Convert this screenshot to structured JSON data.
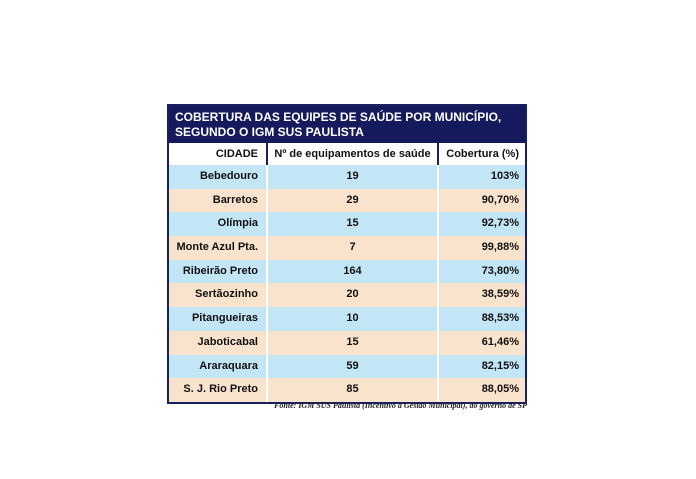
{
  "title_line1": "COBERTURA DAS EQUIPES DE SAÚDE POR MUNICÍPIO,",
  "title_line2": "SEGUNDO O IGM SUS PAULISTA",
  "headers": [
    "CIDADE",
    "Nº de equipamentos de saúde",
    "Cobertura (%)"
  ],
  "rows": [
    [
      "Bebedouro",
      "19",
      "103%"
    ],
    [
      "Barretos",
      "29",
      "90,70%"
    ],
    [
      "Olímpia",
      "15",
      "92,73%"
    ],
    [
      "Monte Azul Pta.",
      "7",
      "99,88%"
    ],
    [
      "Ribeirão Preto",
      "164",
      "73,80%"
    ],
    [
      "Sertãozinho",
      "20",
      "38,59%"
    ],
    [
      "Pitangueiras",
      "10",
      "88,53%"
    ],
    [
      "Jaboticabal",
      "15",
      "61,46%"
    ],
    [
      "Araraquara",
      "59",
      "82,15%"
    ],
    [
      "S. J. Rio Preto",
      "85",
      "88,05%"
    ]
  ],
  "source": "Fonte: IGM SUS Paulista (Incentivo à Gestão Municipal), do governo de SP",
  "colors": {
    "title_bg": "#141a5c",
    "row_blue": "#c3e6f7",
    "row_peach": "#fae3cc"
  }
}
